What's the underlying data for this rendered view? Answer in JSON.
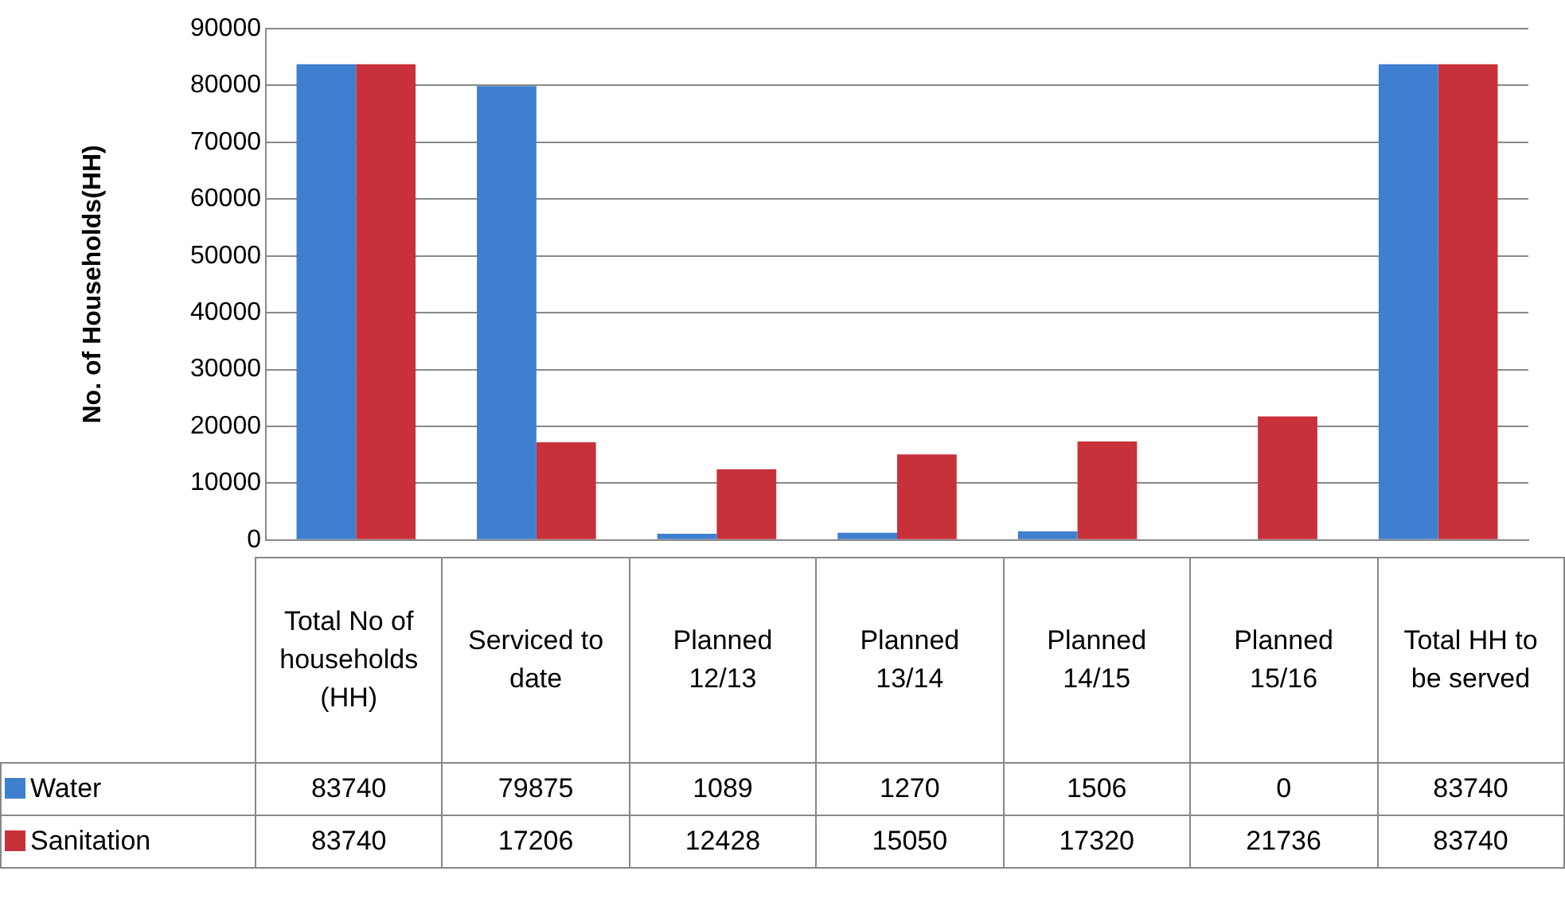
{
  "chart_data": {
    "type": "bar",
    "ylabel": "No. of Households(HH)",
    "categories": [
      "Total No of households (HH)",
      "Serviced to date",
      "Planned 12/13",
      "Planned 13/14",
      "Planned 14/15",
      "Planned 15/16",
      "Total HH to be served"
    ],
    "series": [
      {
        "name": "Water",
        "color": "#3f7fcf",
        "values": [
          83740,
          79875,
          1089,
          1270,
          1506,
          0,
          83740
        ]
      },
      {
        "name": "Sanitation",
        "color": "#c8313a",
        "values": [
          83740,
          17206,
          12428,
          15050,
          17320,
          21736,
          83740
        ]
      }
    ],
    "ylim": [
      0,
      90000
    ],
    "yticks": [
      0,
      10000,
      20000,
      30000,
      40000,
      50000,
      60000,
      70000,
      80000,
      90000
    ],
    "grid": "y",
    "legend": "bottom",
    "data_labels": true
  }
}
